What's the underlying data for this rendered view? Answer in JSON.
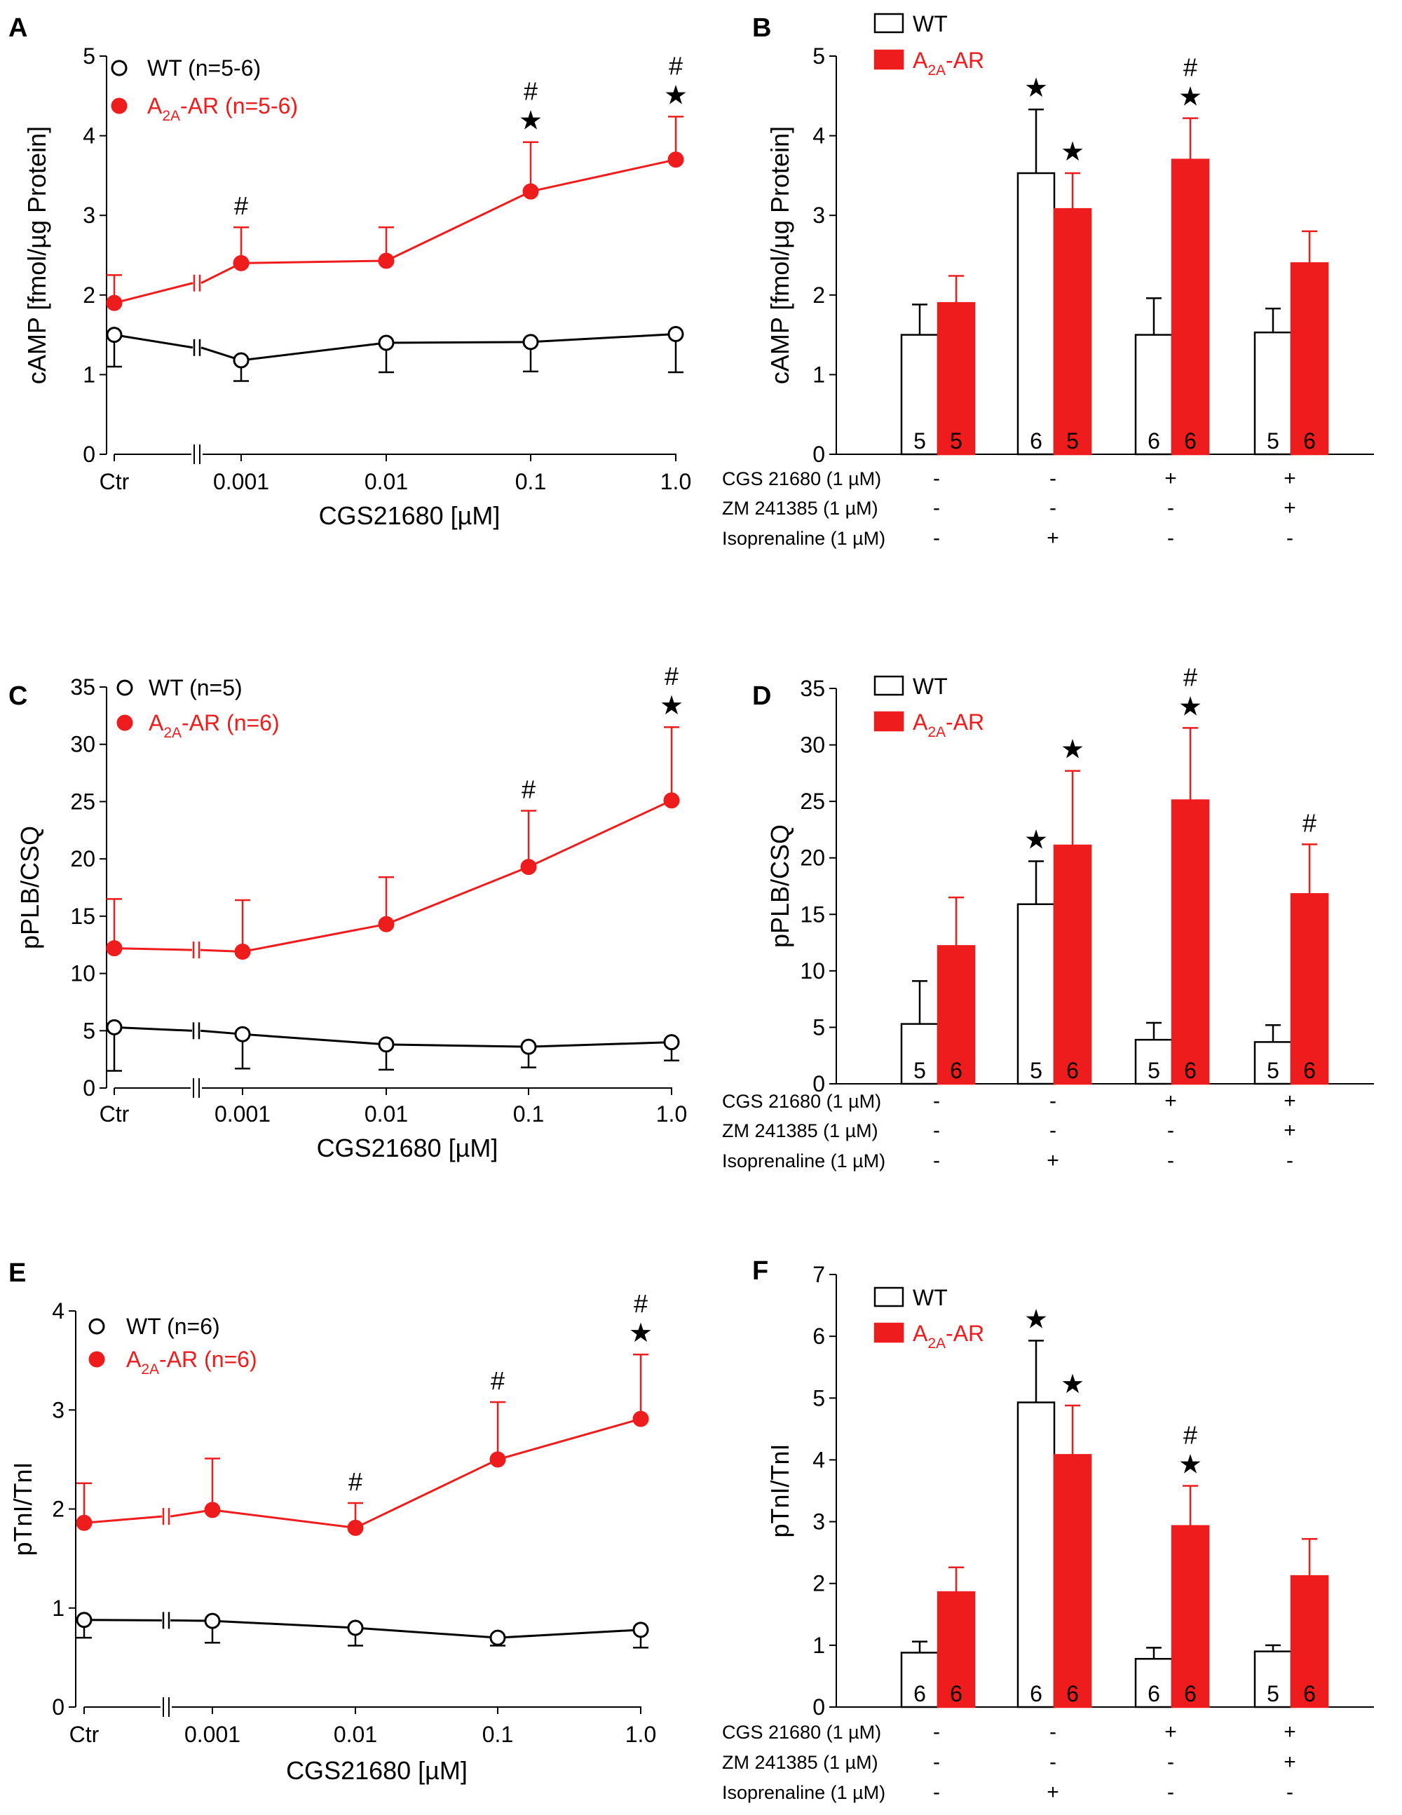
{
  "colors": {
    "wt": "#000000",
    "a2a": "#ee1c1c",
    "wt_fill": "#ffffff"
  },
  "panel_letters": [
    "A",
    "B",
    "C",
    "D",
    "E",
    "F"
  ],
  "chart_data": [
    {
      "panel": "A",
      "type": "line",
      "xlabel": "CGS21680 [µM]",
      "ylabel": "cAMP [fmol/µg Protein]",
      "categories": [
        "Ctr",
        "0.001",
        "0.01",
        "0.1",
        "1.0"
      ],
      "ylim": [
        0,
        5
      ],
      "yticks": [
        "0",
        "1",
        "2",
        "3",
        "4",
        "5"
      ],
      "series": [
        {
          "name": "WT",
          "legend": "WT (n=5-6)",
          "values": [
            1.5,
            1.18,
            1.4,
            1.41,
            1.51
          ],
          "errors": [
            0.4,
            0.26,
            0.37,
            0.37,
            0.48
          ]
        },
        {
          "name": "A2A-AR",
          "legend_main": "A",
          "legend_sub": "2A",
          "legend_rest": "-AR (n=5-6)",
          "values": [
            1.9,
            2.4,
            2.43,
            3.3,
            3.7
          ],
          "errors": [
            0.35,
            0.45,
            0.42,
            0.62,
            0.54
          ]
        }
      ],
      "annotations": [
        {
          "index": 1,
          "marks": [
            "#"
          ]
        },
        {
          "index": 3,
          "marks": [
            "#",
            "★"
          ]
        },
        {
          "index": 4,
          "marks": [
            "#",
            "★"
          ]
        }
      ]
    },
    {
      "panel": "B",
      "type": "bar",
      "ylabel": "cAMP [fmol/µg Protein]",
      "ylim": [
        0,
        5
      ],
      "yticks": [
        "0",
        "1",
        "2",
        "3",
        "4",
        "5"
      ],
      "legend": [
        "WT",
        "A2A-AR"
      ],
      "legend_a2a": {
        "main": "A",
        "sub": "2A",
        "rest": "-AR"
      },
      "treatments": [
        {
          "label": "CGS 21680 (1 µM)",
          "values": [
            "-",
            "-",
            "+",
            "+"
          ]
        },
        {
          "label": "ZM 241385 (1 µM)",
          "values": [
            "-",
            "-",
            "-",
            "+"
          ]
        },
        {
          "label": "Isoprenaline (1 µM)",
          "values": [
            "-",
            "+",
            "-",
            "-"
          ]
        }
      ],
      "series": [
        {
          "name": "WT",
          "values": [
            1.5,
            3.53,
            1.5,
            1.53
          ],
          "errors": [
            0.38,
            0.8,
            0.46,
            0.3
          ],
          "n": [
            "5",
            "6",
            "6",
            "5"
          ]
        },
        {
          "name": "A2A-AR",
          "values": [
            1.9,
            3.08,
            3.7,
            2.4
          ],
          "errors": [
            0.34,
            0.45,
            0.52,
            0.4
          ],
          "n": [
            "5",
            "5",
            "6",
            "6"
          ]
        }
      ],
      "annotations": [
        {
          "group": 1,
          "series": 0,
          "marks": [
            "★"
          ]
        },
        {
          "group": 1,
          "series": 1,
          "marks": [
            "★"
          ]
        },
        {
          "group": 2,
          "series": 1,
          "marks": [
            "#",
            "★"
          ]
        }
      ]
    },
    {
      "panel": "C",
      "type": "line",
      "xlabel": "CGS21680 [µM]",
      "ylabel": "pPLB/CSQ",
      "categories": [
        "Ctr",
        "0.001",
        "0.01",
        "0.1",
        "1.0"
      ],
      "ylim": [
        0,
        35
      ],
      "yticks": [
        "0",
        "5",
        "10",
        "15",
        "20",
        "25",
        "30",
        "35"
      ],
      "series": [
        {
          "name": "WT",
          "legend": "WT (n=5)",
          "values": [
            5.3,
            4.7,
            3.8,
            3.6,
            4.0
          ],
          "errors": [
            3.8,
            3.0,
            2.2,
            1.8,
            1.6
          ]
        },
        {
          "name": "A2A-AR",
          "legend_main": "A",
          "legend_sub": "2A",
          "legend_rest": "-AR (n=6)",
          "values": [
            12.2,
            11.9,
            14.3,
            19.3,
            25.1
          ],
          "errors": [
            4.3,
            4.5,
            4.1,
            4.9,
            6.4
          ]
        }
      ],
      "annotations": [
        {
          "index": 3,
          "marks": [
            "#"
          ]
        },
        {
          "index": 4,
          "marks": [
            "#",
            "★"
          ]
        }
      ]
    },
    {
      "panel": "D",
      "type": "bar",
      "ylabel": "pPLB/CSQ",
      "ylim": [
        0,
        35
      ],
      "yticks": [
        "0",
        "5",
        "10",
        "15",
        "20",
        "25",
        "30",
        "35"
      ],
      "legend": [
        "WT",
        "A2A-AR"
      ],
      "legend_a2a": {
        "main": "A",
        "sub": "2A",
        "rest": "-AR"
      },
      "treatments": [
        {
          "label": "CGS 21680 (1 µM)",
          "values": [
            "-",
            "-",
            "+",
            "+"
          ]
        },
        {
          "label": "ZM 241385 (1 µM)",
          "values": [
            "-",
            "-",
            "-",
            "+"
          ]
        },
        {
          "label": "Isoprenaline (1 µM)",
          "values": [
            "-",
            "+",
            "-",
            "-"
          ]
        }
      ],
      "series": [
        {
          "name": "WT",
          "values": [
            5.3,
            15.9,
            3.9,
            3.7
          ],
          "errors": [
            3.8,
            3.8,
            1.5,
            1.5
          ],
          "n": [
            "5",
            "5",
            "5",
            "5"
          ]
        },
        {
          "name": "A2A-AR",
          "values": [
            12.2,
            21.1,
            25.1,
            16.8
          ],
          "errors": [
            4.3,
            6.6,
            6.4,
            4.4
          ],
          "n": [
            "6",
            "6",
            "6",
            "6"
          ]
        }
      ],
      "annotations": [
        {
          "group": 1,
          "series": 0,
          "marks": [
            "★"
          ]
        },
        {
          "group": 1,
          "series": 1,
          "marks": [
            "★"
          ]
        },
        {
          "group": 2,
          "series": 1,
          "marks": [
            "#",
            "★"
          ]
        },
        {
          "group": 3,
          "series": 1,
          "marks": [
            "#"
          ]
        }
      ]
    },
    {
      "panel": "E",
      "type": "line",
      "xlabel": "CGS21680 [µM]",
      "ylabel": "pTnI/TnI",
      "categories": [
        "Ctr",
        "0.001",
        "0.01",
        "0.1",
        "1.0"
      ],
      "ylim": [
        0,
        4
      ],
      "yticks": [
        "0",
        "1",
        "2",
        "3",
        "4"
      ],
      "series": [
        {
          "name": "WT",
          "legend": "WT (n=6)",
          "values": [
            0.88,
            0.87,
            0.8,
            0.7,
            0.78
          ],
          "errors": [
            0.18,
            0.22,
            0.18,
            0.08,
            0.18
          ]
        },
        {
          "name": "A2A-AR",
          "legend_main": "A",
          "legend_sub": "2A",
          "legend_rest": "-AR (n=6)",
          "values": [
            1.86,
            1.99,
            1.81,
            2.5,
            2.91
          ],
          "errors": [
            0.4,
            0.52,
            0.25,
            0.58,
            0.65
          ]
        }
      ],
      "annotations": [
        {
          "index": 2,
          "marks": [
            "#"
          ]
        },
        {
          "index": 3,
          "marks": [
            "#"
          ]
        },
        {
          "index": 4,
          "marks": [
            "#",
            "★"
          ]
        }
      ]
    },
    {
      "panel": "F",
      "type": "bar",
      "ylabel": "pTnI/TnI",
      "ylim": [
        0,
        7
      ],
      "yticks": [
        "0",
        "1",
        "2",
        "3",
        "4",
        "5",
        "6",
        "7"
      ],
      "legend": [
        "WT",
        "A2A-AR"
      ],
      "legend_a2a": {
        "main": "A",
        "sub": "2A",
        "rest": "-AR"
      },
      "treatments": [
        {
          "label": "CGS 21680 (1 µM)",
          "values": [
            "-",
            "-",
            "+",
            "+"
          ]
        },
        {
          "label": "ZM 241385 (1 µM)",
          "values": [
            "-",
            "-",
            "-",
            "+"
          ]
        },
        {
          "label": "Isoprenaline (1 µM)",
          "values": [
            "-",
            "+",
            "-",
            "-"
          ]
        }
      ],
      "series": [
        {
          "name": "WT",
          "values": [
            0.88,
            4.93,
            0.78,
            0.9
          ],
          "errors": [
            0.18,
            1.0,
            0.18,
            0.1
          ],
          "n": [
            "6",
            "6",
            "6",
            "5"
          ]
        },
        {
          "name": "A2A-AR",
          "values": [
            1.86,
            4.08,
            2.93,
            2.12
          ],
          "errors": [
            0.4,
            0.8,
            0.65,
            0.6
          ],
          "n": [
            "6",
            "6",
            "6",
            "6"
          ]
        }
      ],
      "annotations": [
        {
          "group": 1,
          "series": 0,
          "marks": [
            "★"
          ]
        },
        {
          "group": 1,
          "series": 1,
          "marks": [
            "★"
          ]
        },
        {
          "group": 2,
          "series": 1,
          "marks": [
            "#",
            "★"
          ]
        }
      ]
    }
  ]
}
